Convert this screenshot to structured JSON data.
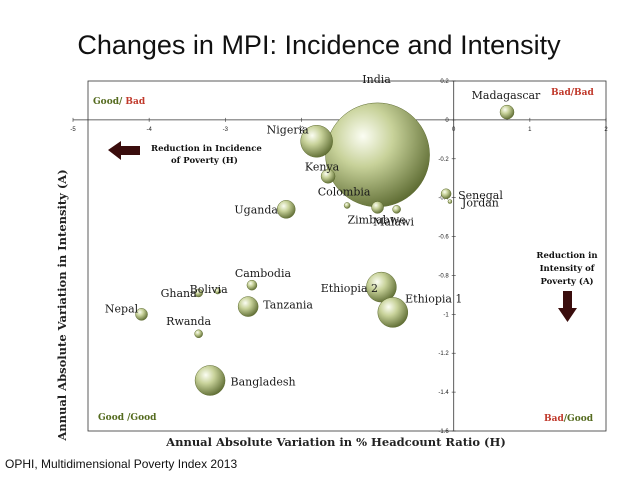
{
  "title": "Changes in MPI: Incidence and Intensity",
  "source": "OPHI, Multidimensional Poverty Index 2013",
  "chart_data": {
    "type": "scatter",
    "xlabel": "Annual Absolute Variation in  % Headcount Ratio (H)",
    "ylabel": "Annual Absolute Variation in Intensity (A)",
    "xlim": [
      -5,
      2
    ],
    "ylim": [
      -1.6,
      0.2
    ],
    "x_ticks": [
      "-5",
      "-4",
      "-3",
      "-2",
      "-1",
      "0",
      "1",
      "2"
    ],
    "y_ticks": [
      "0.2",
      "0",
      "-0.2",
      "-0.4",
      "-0.6",
      "-0.8",
      "-1",
      "-1.2",
      "-1.4",
      "-1.6"
    ],
    "quadrant_labels": {
      "top_left": {
        "part1": "Good/",
        "part2": " Bad"
      },
      "top_right": "Bad/Bad",
      "bottom_left": "Good /Good",
      "bottom_right": {
        "part1": "Bad",
        "part2": "/Good"
      }
    },
    "annotations": {
      "left": [
        "Reduction in Incidence",
        "of Poverty (H)"
      ],
      "right": [
        "Reduction in",
        "Intensity of",
        "Poverty (A)"
      ]
    },
    "points": [
      {
        "label": "India",
        "x": -1.0,
        "y": -0.18,
        "size": 52
      },
      {
        "label": "Nigeria",
        "x": -1.8,
        "y": -0.11,
        "size": 16
      },
      {
        "label": "Kenya",
        "x": -1.65,
        "y": -0.29,
        "size": 7
      },
      {
        "label": "Madagascar",
        "x": 0.7,
        "y": 0.04,
        "size": 7
      },
      {
        "label": "Senegal",
        "x": -0.1,
        "y": -0.38,
        "size": 5
      },
      {
        "label": "Jordan",
        "x": -0.05,
        "y": -0.42,
        "size": 2
      },
      {
        "label": "Colombia",
        "x": -1.4,
        "y": -0.44,
        "size": 3
      },
      {
        "label": "Uganda",
        "x": -2.2,
        "y": -0.46,
        "size": 9
      },
      {
        "label": "Zimbabwe",
        "x": -1.0,
        "y": -0.45,
        "size": 6
      },
      {
        "label": "Malawi",
        "x": -0.75,
        "y": -0.46,
        "size": 4
      },
      {
        "label": "Ethiopia 2",
        "x": -0.95,
        "y": -0.86,
        "size": 15
      },
      {
        "label": "Ethiopia 1",
        "x": -0.8,
        "y": -0.99,
        "size": 15
      },
      {
        "label": "Cambodia",
        "x": -2.65,
        "y": -0.85,
        "size": 5
      },
      {
        "label": "Ghana",
        "x": -3.35,
        "y": -0.89,
        "size": 4
      },
      {
        "label": "Bolivia",
        "x": -3.1,
        "y": -0.88,
        "size": 3
      },
      {
        "label": "Tanzania",
        "x": -2.7,
        "y": -0.96,
        "size": 10
      },
      {
        "label": "Nepal",
        "x": -4.1,
        "y": -1.0,
        "size": 6
      },
      {
        "label": "Rwanda",
        "x": -3.35,
        "y": -1.1,
        "size": 4
      },
      {
        "label": "Bangladesh",
        "x": -3.2,
        "y": -1.34,
        "size": 15
      }
    ]
  }
}
